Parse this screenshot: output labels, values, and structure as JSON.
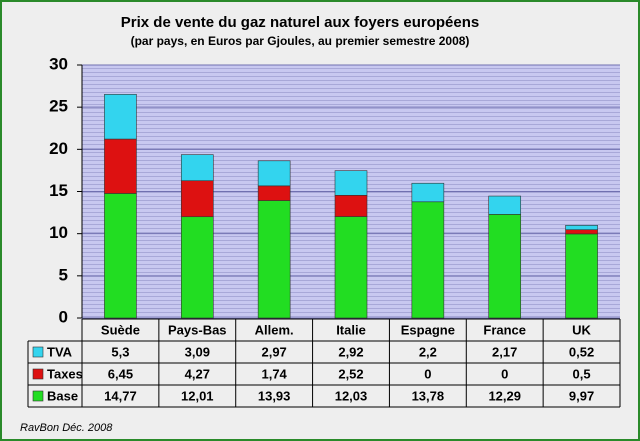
{
  "chart_data": {
    "type": "stacked-bar",
    "title": "Prix de vente du gaz naturel aux foyers européens",
    "subtitle": "(par pays, en Euros par Gjoules, au premier semestre 2008)",
    "footer": "RavBon Déc.  2008",
    "categories": [
      "Suède",
      "Pays-Bas",
      "Allem.",
      "Italie",
      "Espagne",
      "France",
      "UK"
    ],
    "series": [
      {
        "name": "TVA",
        "color": "#33d4ee",
        "values": [
          5.3,
          3.09,
          2.97,
          2.92,
          2.2,
          2.17,
          0.52
        ],
        "value_labels": [
          "5,3",
          "3,09",
          "2,97",
          "2,92",
          "2,2",
          "2,17",
          "0,52"
        ]
      },
      {
        "name": "Taxes",
        "color": "#dd1111",
        "values": [
          6.45,
          4.27,
          1.74,
          2.52,
          0,
          0,
          0.5
        ],
        "value_labels": [
          "6,45",
          "4,27",
          "1,74",
          "2,52",
          "0",
          "0",
          "0,5"
        ]
      },
      {
        "name": "Base",
        "color": "#22dd22",
        "values": [
          14.77,
          12.01,
          13.93,
          12.03,
          13.78,
          12.29,
          9.97
        ],
        "value_labels": [
          "14,77",
          "12,01",
          "13,93",
          "12,03",
          "13,78",
          "12,29",
          "9,97"
        ]
      }
    ],
    "ylim": [
      0,
      30
    ],
    "yticks": [
      0,
      5,
      10,
      15,
      20,
      25,
      30
    ],
    "grid": true
  }
}
